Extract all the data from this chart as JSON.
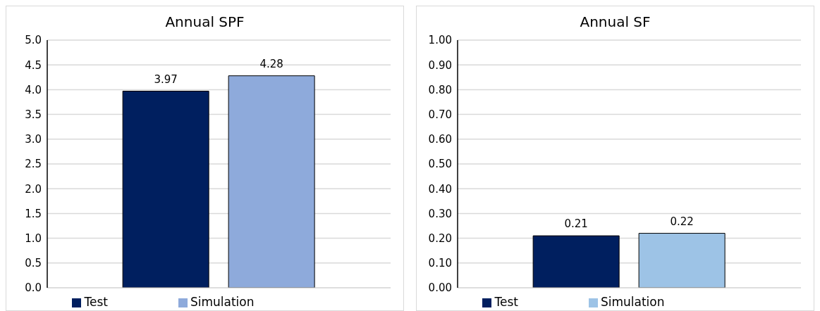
{
  "chart_data": [
    {
      "type": "bar",
      "title": "Annual SPF",
      "categories": [
        null
      ],
      "series": [
        {
          "name": "Test",
          "color": "#001f5f",
          "values": [
            3.97
          ]
        },
        {
          "name": "Simulation",
          "color": "#8eaadb",
          "values": [
            4.28
          ]
        }
      ],
      "ylim": [
        0,
        5
      ],
      "yticks": [
        {
          "value": 0,
          "label": "0.0"
        },
        {
          "value": 0.5,
          "label": "0.5"
        },
        {
          "value": 1,
          "label": "1.0"
        },
        {
          "value": 1.5,
          "label": "1.5"
        },
        {
          "value": 2,
          "label": "2.0"
        },
        {
          "value": 2.5,
          "label": "2.5"
        },
        {
          "value": 3,
          "label": "3.0"
        },
        {
          "value": 3.5,
          "label": "3.5"
        },
        {
          "value": 4,
          "label": "4.0"
        },
        {
          "value": 4.5,
          "label": "4.5"
        },
        {
          "value": 5,
          "label": "5.0"
        }
      ],
      "grid": "y",
      "legend": "bottom",
      "data_labels": true
    },
    {
      "type": "bar",
      "title": "Annual SF",
      "categories": [
        null
      ],
      "series": [
        {
          "name": "Test",
          "color": "#001f5f",
          "values": [
            0.21
          ]
        },
        {
          "name": "Simulation",
          "color": "#9dc3e6",
          "values": [
            0.22
          ]
        }
      ],
      "ylim": [
        0,
        1
      ],
      "yticks": [
        {
          "value": 0,
          "label": "0.00"
        },
        {
          "value": 0.1,
          "label": "0.10"
        },
        {
          "value": 0.2,
          "label": "0.20"
        },
        {
          "value": 0.3,
          "label": "0.30"
        },
        {
          "value": 0.4,
          "label": "0.40"
        },
        {
          "value": 0.5,
          "label": "0.50"
        },
        {
          "value": 0.6,
          "label": "0.60"
        },
        {
          "value": 0.7,
          "label": "0.70"
        },
        {
          "value": 0.8,
          "label": "0.80"
        },
        {
          "value": 0.9,
          "label": "0.90"
        },
        {
          "value": 1,
          "label": "1.00"
        }
      ],
      "grid": "y",
      "legend": "bottom",
      "data_labels": true
    }
  ]
}
